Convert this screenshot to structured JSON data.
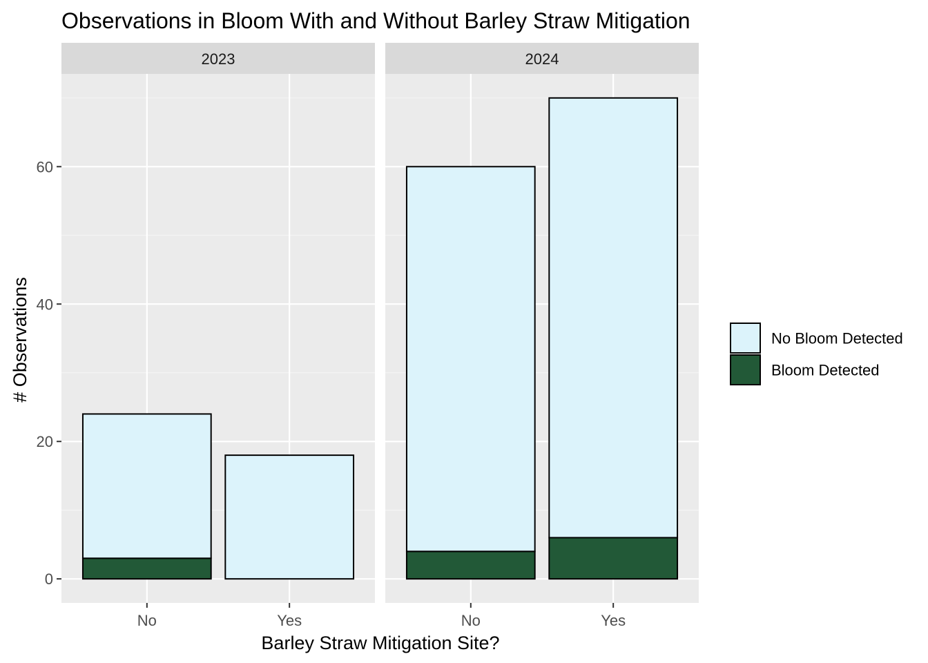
{
  "chart_data": {
    "type": "bar",
    "stacked": true,
    "title": "Observations in Bloom With and Without Barley Straw Mitigation",
    "xlabel": "Barley Straw Mitigation Site?",
    "ylabel": "# Observations",
    "categories": [
      "No",
      "Yes"
    ],
    "facets": [
      "2023",
      "2024"
    ],
    "ylim": [
      -3.5,
      73.5
    ],
    "y_ticks": [
      0,
      20,
      40,
      60
    ],
    "y_tick_labels": [
      "0",
      "20",
      "40",
      "60"
    ],
    "grid": true,
    "legend_position": "right",
    "series": [
      {
        "name": "Bloom Detected",
        "color": "#225937",
        "values": {
          "2023": [
            3,
            0
          ],
          "2024": [
            4,
            6
          ]
        }
      },
      {
        "name": "No Bloom Detected",
        "color": "#dcf3fb",
        "values": {
          "2023": [
            21,
            18
          ],
          "2024": [
            56,
            64
          ]
        }
      }
    ],
    "legend": [
      {
        "label": "No Bloom Detected",
        "color": "#dcf3fb"
      },
      {
        "label": "Bloom Detected",
        "color": "#225937"
      }
    ],
    "colors": {
      "panel_background": "#ebebeb",
      "strip_background": "#d9d9d9",
      "grid_major": "#ffffff",
      "grid_minor": "#f5f5f5",
      "bar_outline": "#000000"
    }
  }
}
